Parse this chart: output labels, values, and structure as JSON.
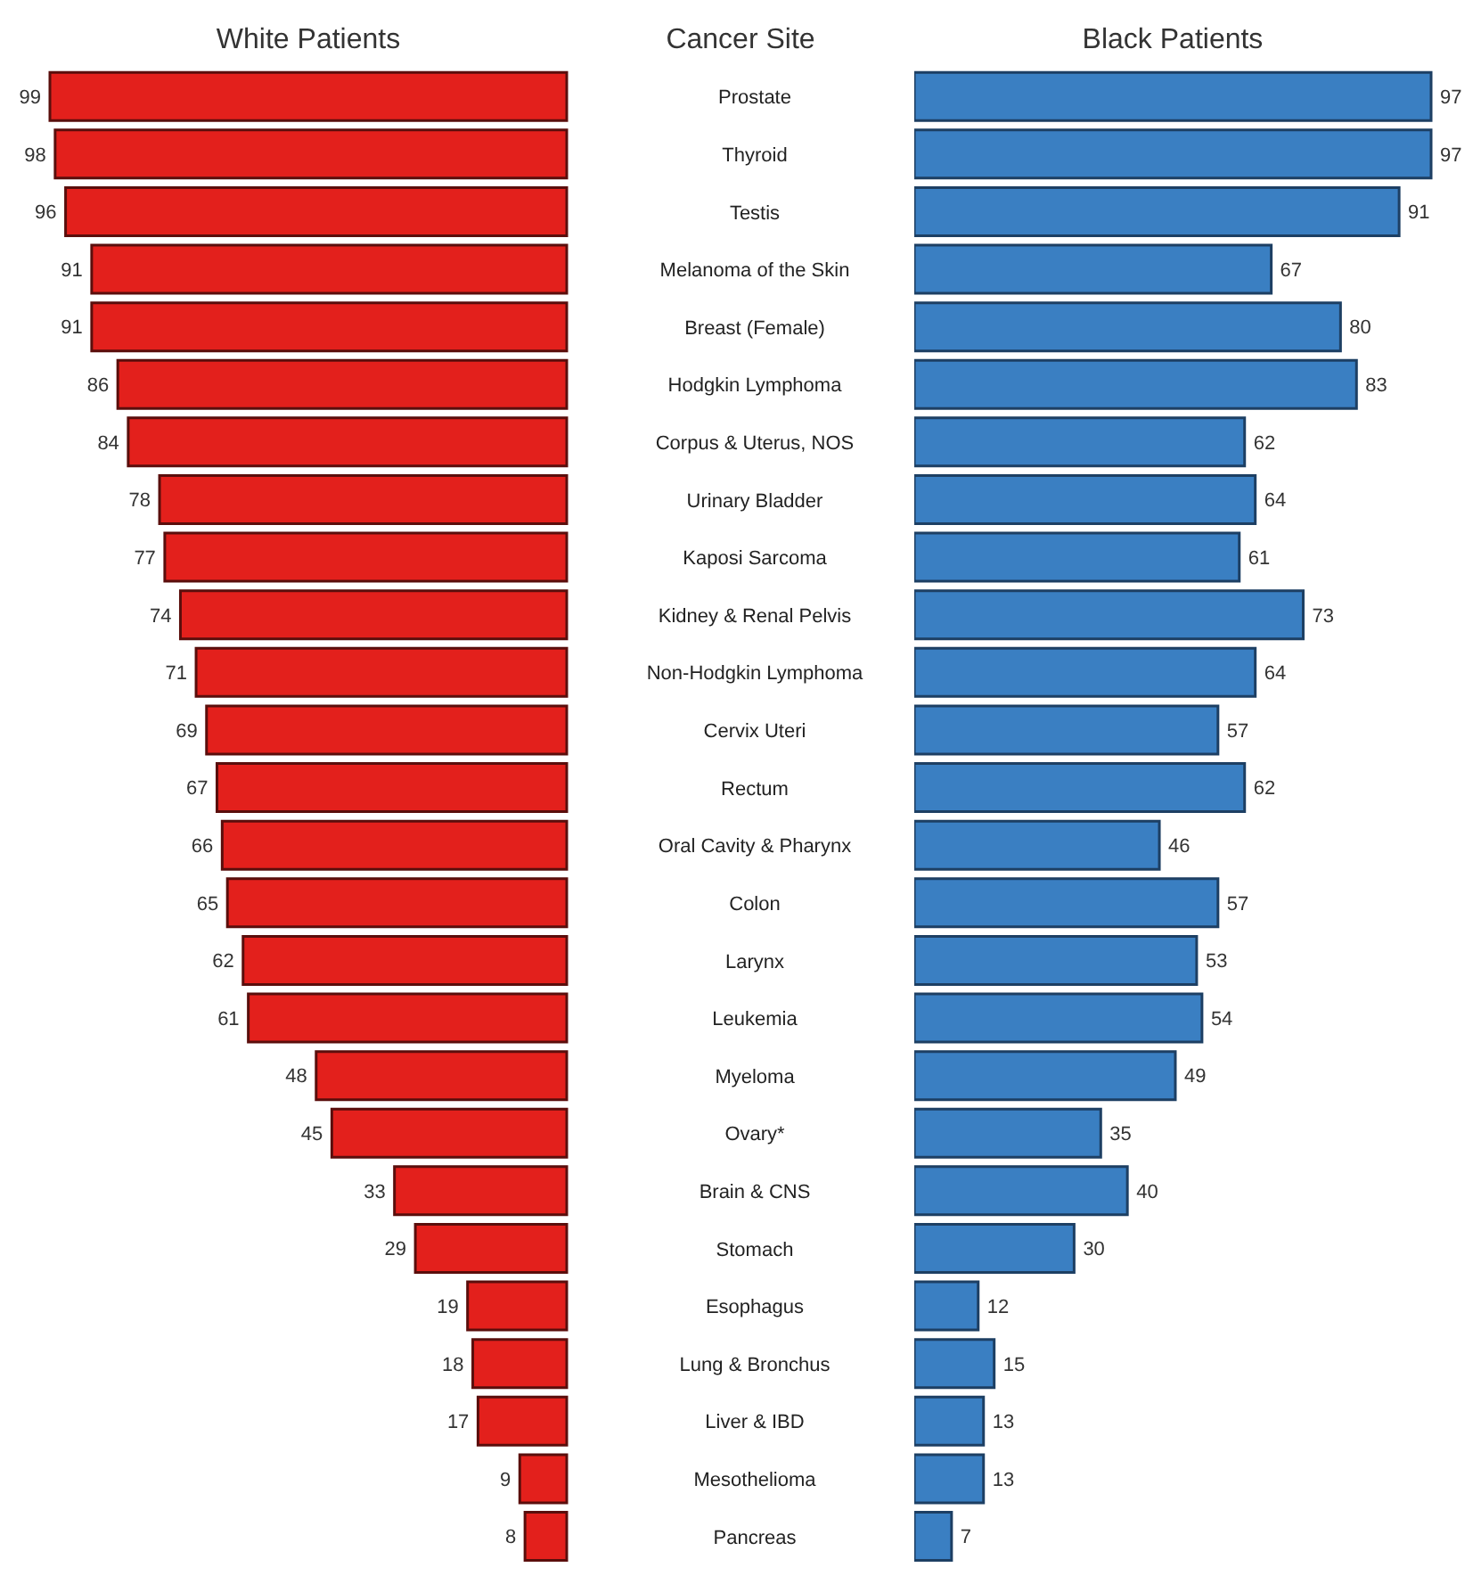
{
  "chart_data": [
    {
      "type": "bar",
      "orientation": "horizontal",
      "title": "White Patients",
      "ylabel": "Cancer Site",
      "data_labels": true,
      "categories": [
        "Prostate",
        "Thyroid",
        "Testis",
        "Melanoma of the Skin",
        "Breast (Female)",
        "Hodgkin Lymphoma",
        "Corpus & Uterus, NOS",
        "Urinary Bladder",
        "Kaposi Sarcoma",
        "Kidney & Renal Pelvis",
        "Non-Hodgkin Lymphoma",
        "Cervix Uteri",
        "Rectum",
        "Oral Cavity & Pharynx",
        "Colon",
        "Larynx",
        "Leukemia",
        "Myeloma",
        "Ovary*",
        "Brain & CNS",
        "Stomach",
        "Esophagus",
        "Lung & Bronchus",
        "Liver & IBD",
        "Mesothelioma",
        "Pancreas"
      ],
      "values": [
        99,
        98,
        96,
        91,
        91,
        86,
        84,
        78,
        77,
        74,
        71,
        69,
        67,
        66,
        65,
        62,
        61,
        48,
        45,
        33,
        29,
        19,
        18,
        17,
        9,
        8
      ],
      "color": "#e3201c"
    },
    {
      "type": "bar",
      "orientation": "horizontal",
      "title": "Black Patients",
      "data_labels": true,
      "tick_labels": false,
      "categories": [
        null,
        null,
        null,
        null,
        null,
        null,
        null,
        null,
        null,
        null,
        null,
        null,
        null,
        null,
        null,
        null,
        null,
        null,
        null,
        null,
        null,
        null,
        null,
        null,
        null,
        null
      ],
      "values": [
        97,
        97,
        91,
        67,
        80,
        83,
        62,
        64,
        61,
        73,
        64,
        57,
        62,
        46,
        57,
        53,
        54,
        49,
        35,
        40,
        30,
        12,
        15,
        13,
        13,
        7
      ],
      "color": "#3a7fc2"
    }
  ]
}
